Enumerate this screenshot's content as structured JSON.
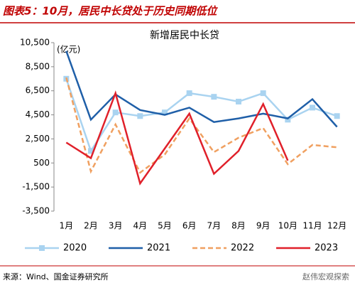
{
  "figure_title": "图表5：10月，居民中长贷处于历史同期低位",
  "source": "来源：Wind、国金证券研究所",
  "watermark": "赵伟宏观探索",
  "chart_data": {
    "type": "line",
    "title": "新增居民中长贷",
    "unit": "(亿元)",
    "categories": [
      "1月",
      "2月",
      "3月",
      "4月",
      "5月",
      "6月",
      "7月",
      "8月",
      "9月",
      "10月",
      "11月",
      "12月"
    ],
    "ylim": [
      -3500,
      10500
    ],
    "yticks": [
      {
        "value": 10500,
        "label": "10,500"
      },
      {
        "value": 8500,
        "label": "8,500"
      },
      {
        "value": 6500,
        "label": "6,500"
      },
      {
        "value": 4500,
        "label": "4,500"
      },
      {
        "value": 2500,
        "label": "2,500"
      },
      500,
      {
        "value": -1500,
        "label": "-1,500"
      },
      {
        "value": -3500,
        "label": "-3,500"
      }
    ],
    "grid": false,
    "series": [
      {
        "name": "2020",
        "color": "#a9d3f0",
        "marker": "square",
        "values": [
          7500,
          1500,
          4700,
          4400,
          4700,
          6300,
          6000,
          5600,
          6300,
          4100,
          5100,
          4400
        ]
      },
      {
        "name": "2021",
        "color": "#1f5fa8",
        "values": [
          9800,
          4100,
          6200,
          4900,
          4500,
          5100,
          3900,
          4200,
          4600,
          4200,
          5800,
          3500
        ]
      },
      {
        "name": "2022",
        "color": "#f0a060",
        "dash": true,
        "values": [
          7600,
          -200,
          3700,
          -300,
          1200,
          4200,
          1400,
          2600,
          3400,
          400,
          2000,
          1800
        ]
      },
      {
        "name": "2023",
        "color": "#e0202a",
        "values": [
          2200,
          900,
          6300,
          -1200,
          1700,
          4600,
          -400,
          1500,
          5400,
          700,
          null,
          null
        ]
      }
    ]
  }
}
